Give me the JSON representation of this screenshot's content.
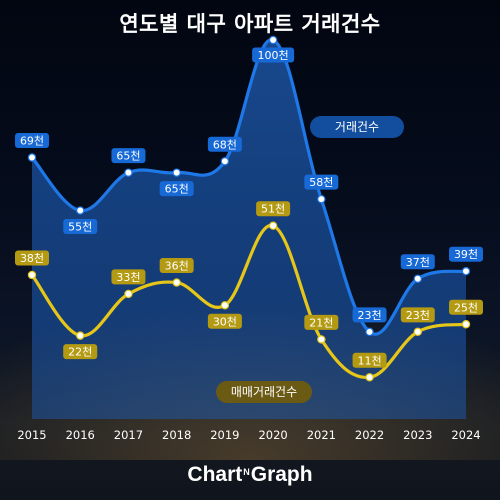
{
  "chart_data": {
    "type": "line",
    "title": "연도별 대구 아파트 거래건수",
    "categories": [
      "2015",
      "2016",
      "2017",
      "2018",
      "2019",
      "2020",
      "2021",
      "2022",
      "2023",
      "2024"
    ],
    "series": [
      {
        "name": "거래건수",
        "values": [
          69,
          55,
          65,
          65,
          68,
          100,
          58,
          23,
          37,
          39
        ],
        "labels": [
          "69천",
          "55천",
          "65천",
          "65천",
          "68천",
          "100천",
          "58천",
          "23천",
          "37천",
          "39천"
        ],
        "color": "#1f78e8",
        "area": true
      },
      {
        "name": "매매거래건수",
        "values": [
          38,
          22,
          33,
          36,
          30,
          51,
          21,
          11,
          23,
          25
        ],
        "labels": [
          "38천",
          "22천",
          "33천",
          "36천",
          "30천",
          "51천",
          "21천",
          "11천",
          "23천",
          "25천"
        ],
        "color": "#e6c619",
        "area": false
      }
    ],
    "ylim": [
      0,
      100
    ],
    "grid": false,
    "legend": "inline"
  },
  "brand": {
    "left": "Chart",
    "mid": "N",
    "right": "Graph"
  }
}
